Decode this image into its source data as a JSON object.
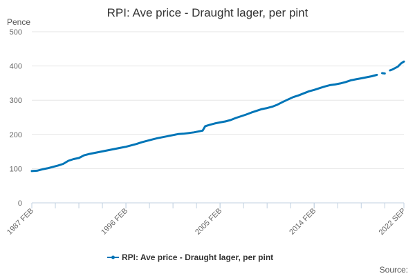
{
  "chart_data": {
    "type": "line",
    "title": "RPI: Ave price - Draught lager, per pint",
    "ylabel": "Pence",
    "xlabel": "",
    "ylim": [
      0,
      500
    ],
    "yticks": [
      0,
      100,
      200,
      300,
      400,
      500
    ],
    "x_start": "1987 FEB",
    "x_end": "2022 SEP",
    "xtick_labels": [
      "1987 FEB",
      "1996 FEB",
      "2005 FEB",
      "2014 FEB",
      "2022 SEP"
    ],
    "series": [
      {
        "name": "RPI: Ave price - Draught lager, per pint",
        "color": "#0075b7",
        "points": [
          [
            "1987-02",
            93
          ],
          [
            "1987-08",
            94
          ],
          [
            "1988-02",
            98
          ],
          [
            "1988-08",
            101
          ],
          [
            "1989-02",
            105
          ],
          [
            "1989-08",
            109
          ],
          [
            "1990-02",
            114
          ],
          [
            "1990-08",
            123
          ],
          [
            "1991-02",
            128
          ],
          [
            "1991-08",
            131
          ],
          [
            "1992-02",
            139
          ],
          [
            "1992-08",
            143
          ],
          [
            "1993-02",
            146
          ],
          [
            "1993-08",
            149
          ],
          [
            "1994-02",
            152
          ],
          [
            "1994-08",
            155
          ],
          [
            "1995-02",
            158
          ],
          [
            "1995-08",
            161
          ],
          [
            "1996-02",
            164
          ],
          [
            "1996-08",
            168
          ],
          [
            "1997-02",
            172
          ],
          [
            "1997-08",
            177
          ],
          [
            "1998-02",
            181
          ],
          [
            "1998-08",
            185
          ],
          [
            "1999-02",
            189
          ],
          [
            "1999-08",
            192
          ],
          [
            "2000-02",
            195
          ],
          [
            "2000-08",
            198
          ],
          [
            "2001-02",
            201
          ],
          [
            "2001-08",
            202
          ],
          [
            "2002-02",
            204
          ],
          [
            "2002-08",
            206
          ],
          [
            "2003-02",
            209
          ],
          [
            "2003-06",
            211
          ],
          [
            "2003-09",
            224
          ],
          [
            "2004-02",
            228
          ],
          [
            "2004-08",
            232
          ],
          [
            "2005-02",
            235
          ],
          [
            "2005-08",
            238
          ],
          [
            "2006-02",
            242
          ],
          [
            "2006-08",
            248
          ],
          [
            "2007-02",
            253
          ],
          [
            "2007-08",
            258
          ],
          [
            "2008-02",
            264
          ],
          [
            "2008-08",
            269
          ],
          [
            "2009-02",
            274
          ],
          [
            "2009-08",
            277
          ],
          [
            "2010-02",
            281
          ],
          [
            "2010-08",
            287
          ],
          [
            "2011-02",
            295
          ],
          [
            "2011-08",
            302
          ],
          [
            "2012-02",
            309
          ],
          [
            "2012-08",
            314
          ],
          [
            "2013-02",
            320
          ],
          [
            "2013-08",
            326
          ],
          [
            "2014-02",
            330
          ],
          [
            "2014-08",
            335
          ],
          [
            "2015-02",
            340
          ],
          [
            "2015-08",
            344
          ],
          [
            "2016-02",
            346
          ],
          [
            "2016-08",
            349
          ],
          [
            "2017-02",
            353
          ],
          [
            "2017-08",
            358
          ],
          [
            "2018-02",
            361
          ],
          [
            "2018-08",
            364
          ],
          [
            "2019-02",
            367
          ],
          [
            "2019-08",
            370
          ],
          [
            "2020-02",
            374
          ],
          [
            "2020-05",
            null
          ],
          [
            "2020-08",
            379
          ],
          [
            "2020-11",
            378
          ],
          [
            "2021-01",
            null
          ],
          [
            "2021-05",
            387
          ],
          [
            "2021-08",
            390
          ],
          [
            "2022-02",
            398
          ],
          [
            "2022-06",
            408
          ],
          [
            "2022-09",
            413
          ]
        ]
      }
    ],
    "legend_position": "bottom",
    "grid": "horizontal"
  },
  "source_label": "Source:"
}
